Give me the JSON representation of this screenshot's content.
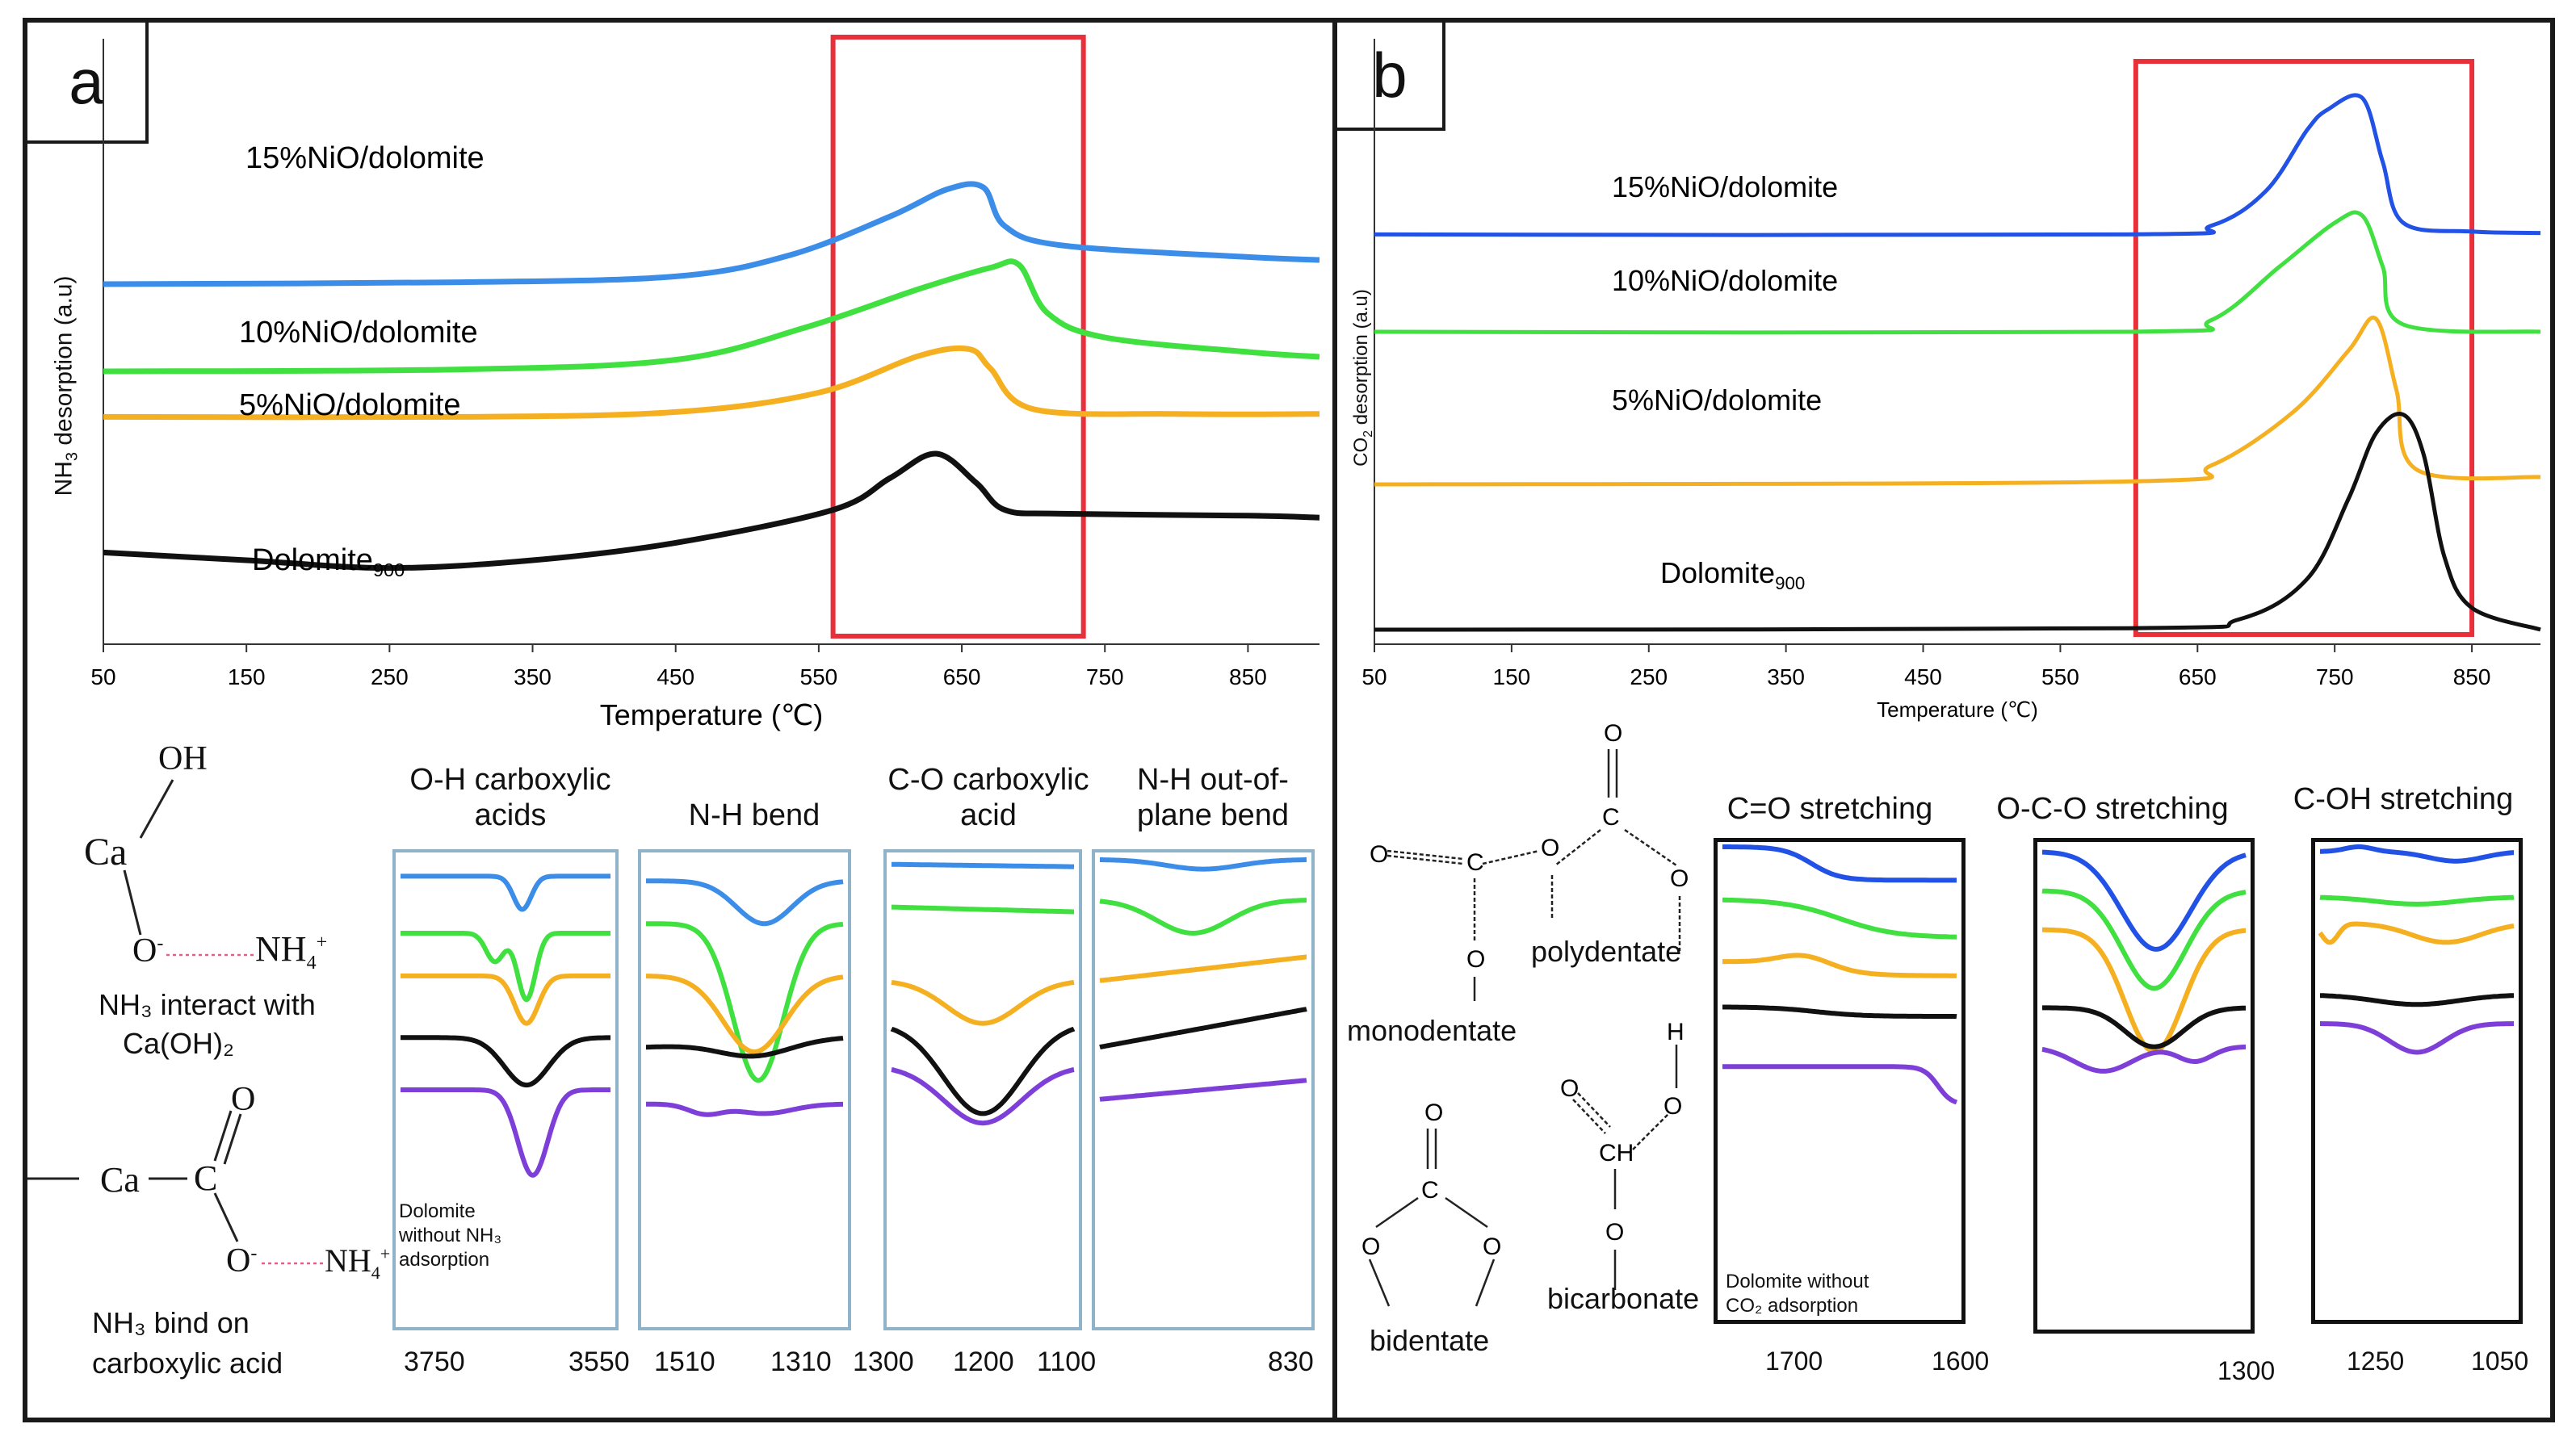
{
  "colors": {
    "blue": "#3b8de8",
    "green": "#3fe040",
    "orange": "#f5b022",
    "black": "#111111",
    "purple": "#7d3fd8",
    "red": "#e8303a",
    "blue_b": "#2251e6",
    "box": "#8fb3c8"
  },
  "panel_a": {
    "label": "a",
    "chart_data": {
      "type": "line",
      "title": "",
      "xlabel": "Temperature (℃)",
      "ylabel": "NH3 desorption (a.u)",
      "xlim": [
        50,
        900
      ],
      "xticks": [
        "50",
        "150",
        "250",
        "350",
        "450",
        "550",
        "650",
        "750",
        "850"
      ],
      "highlight_range": [
        560,
        735
      ],
      "series": [
        {
          "name": "15%NiO/dolomite",
          "color": "blue",
          "offset": 3.05,
          "points": [
            [
              50,
              0
            ],
            [
              300,
              0.02
            ],
            [
              450,
              0.08
            ],
            [
              530,
              0.3
            ],
            [
              600,
              0.7
            ],
            [
              640,
              0.98
            ],
            [
              665,
              1.0
            ],
            [
              680,
              0.6
            ],
            [
              720,
              0.4
            ],
            [
              850,
              0.28
            ],
            [
              900,
              0.25
            ]
          ]
        },
        {
          "name": "10%NiO/dolomite",
          "color": "green",
          "offset": 2.15,
          "points": [
            [
              50,
              0
            ],
            [
              300,
              0.02
            ],
            [
              450,
              0.12
            ],
            [
              540,
              0.45
            ],
            [
              620,
              0.85
            ],
            [
              670,
              1.07
            ],
            [
              690,
              1.1
            ],
            [
              710,
              0.6
            ],
            [
              750,
              0.35
            ],
            [
              850,
              0.2
            ],
            [
              900,
              0.15
            ]
          ]
        },
        {
          "name": "5%NiO/dolomite",
          "color": "orange",
          "offset": 1.68,
          "points": [
            [
              50,
              0
            ],
            [
              300,
              0
            ],
            [
              450,
              0.05
            ],
            [
              550,
              0.25
            ],
            [
              620,
              0.63
            ],
            [
              655,
              0.7
            ],
            [
              670,
              0.5
            ],
            [
              700,
              0.08
            ],
            [
              800,
              0.03
            ],
            [
              900,
              0.03
            ]
          ]
        },
        {
          "name": "Dolomite",
          "name_sub": "900",
          "color": "black",
          "offset": 0,
          "points": [
            [
              50,
              0.28
            ],
            [
              150,
              0.2
            ],
            [
              250,
              0.12
            ],
            [
              350,
              0.2
            ],
            [
              450,
              0.38
            ],
            [
              560,
              0.72
            ],
            [
              600,
              1.05
            ],
            [
              632,
              1.3
            ],
            [
              660,
              1.0
            ],
            [
              680,
              0.72
            ],
            [
              720,
              0.68
            ],
            [
              850,
              0.66
            ],
            [
              900,
              0.64
            ]
          ]
        }
      ]
    },
    "ir_headers": [
      {
        "line1": "O-H carboxylic",
        "line2": "acids"
      },
      {
        "line1": "N-H bend",
        "line2": ""
      },
      {
        "line1": "C-O carboxylic",
        "line2": "acid"
      },
      {
        "line1": "N-H out-of-",
        "line2": "plane bend"
      }
    ],
    "ir_ticks": [
      [
        "3750",
        "3550"
      ],
      [
        "1510",
        "1310"
      ],
      [
        "1300",
        "1200",
        "1100"
      ],
      [
        "830"
      ]
    ],
    "ir_note": "Dolomite without NH₃ adsorption",
    "chem": {
      "oh": "OH",
      "ca": "Ca",
      "o_minus": "O",
      "nh4": "NH",
      "interact1": "NH₃ interact with",
      "interact2": "Ca(OH)₂",
      "o_top": "O",
      "c": "C",
      "bind1": "NH₃ bind on",
      "bind2": "carboxylic acid"
    }
  },
  "panel_b": {
    "label": "b",
    "chart_data": {
      "type": "line",
      "title": "",
      "xlabel": "Temperature (℃)",
      "ylabel": "CO2 desorption (a.u)",
      "xlim": [
        50,
        900
      ],
      "xticks": [
        "50",
        "150",
        "250",
        "350",
        "450",
        "550",
        "650",
        "750",
        "850"
      ],
      "highlight_range": [
        605,
        850
      ],
      "series": [
        {
          "name": "15%NiO/dolomite",
          "color": "blue_b",
          "offset": 2.72,
          "points": [
            [
              50,
              0
            ],
            [
              600,
              0
            ],
            [
              660,
              0.06
            ],
            [
              700,
              0.3
            ],
            [
              730,
              0.72
            ],
            [
              745,
              0.86
            ],
            [
              770,
              0.94
            ],
            [
              785,
              0.5
            ],
            [
              800,
              0.08
            ],
            [
              850,
              0.02
            ],
            [
              900,
              0.01
            ]
          ]
        },
        {
          "name": "10%NiO/dolomite",
          "color": "green",
          "offset": 2.05,
          "points": [
            [
              50,
              0
            ],
            [
              600,
              0
            ],
            [
              660,
              0.08
            ],
            [
              710,
              0.45
            ],
            [
              750,
              0.75
            ],
            [
              770,
              0.8
            ],
            [
              785,
              0.45
            ],
            [
              800,
              0.05
            ],
            [
              900,
              0
            ]
          ]
        },
        {
          "name": "5%NiO/dolomite",
          "color": "orange",
          "offset": 1.0,
          "points": [
            [
              50,
              0
            ],
            [
              600,
              0.02
            ],
            [
              660,
              0.13
            ],
            [
              720,
              0.5
            ],
            [
              760,
              0.92
            ],
            [
              780,
              1.14
            ],
            [
              795,
              0.65
            ],
            [
              810,
              0.1
            ],
            [
              900,
              0.05
            ]
          ]
        },
        {
          "name": "Dolomite",
          "name_sub": "900",
          "color": "black",
          "offset": 0,
          "points": [
            [
              50,
              0
            ],
            [
              600,
              0.01
            ],
            [
              680,
              0.07
            ],
            [
              730,
              0.35
            ],
            [
              760,
              0.9
            ],
            [
              780,
              1.35
            ],
            [
              800,
              1.48
            ],
            [
              815,
              1.2
            ],
            [
              830,
              0.5
            ],
            [
              850,
              0.15
            ],
            [
              900,
              0
            ]
          ]
        }
      ]
    },
    "ir_headers": [
      "C=O stretching",
      "O-C-O stretching",
      "C-OH stretching"
    ],
    "ir_ticks": [
      [
        "1700",
        "1600"
      ],
      [
        "1300"
      ],
      [
        "1250",
        "1050"
      ]
    ],
    "ir_note1": "Dolomite without",
    "ir_note2": "CO₂ adsorption",
    "chem": {
      "monodentate": "monodentate",
      "polydentate": "polydentate",
      "bidentate": "bidentate",
      "bicarbonate": "bicarbonate",
      "o": "O",
      "c": "C",
      "ch": "CH",
      "h": "H"
    }
  }
}
